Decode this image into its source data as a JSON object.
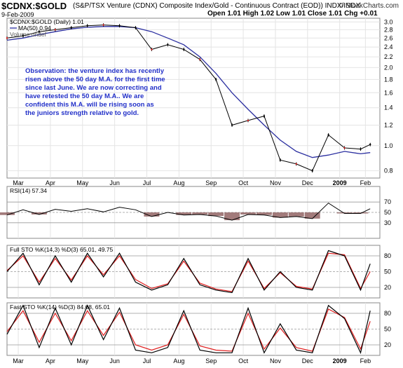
{
  "header": {
    "symbol": "$CDNX:$GOLD",
    "description": "(S&P/TSX Venture (CDNX) Composite Index/Gold - Continuous Contract (EOD))",
    "exchange": "INDX/INDX",
    "date": "9-Feb-2009",
    "quote": "Open 1.01  High 1.02  Low 1.01  Close 1.01  Chg +0.01 (+1.48%)",
    "brand": "© StockCharts.com"
  },
  "annotation": "Observation: the venture index has recently risen above the 50 day M.A. for the first time since last June. We are now correcting and have retested the 50 day M.A.. We are confident this M.A. will be rising soon as the juniors strength relative to gold.",
  "colors": {
    "price": "#000000",
    "ma": "#2b2fa0",
    "signal": "#e02020",
    "rsi_fill": "#8b5a5a",
    "grid": "#e4e4e4",
    "annotation": "#2230c8"
  },
  "chart_data": [
    {
      "type": "line",
      "title": "$CDNX:$GOLD (Daily) 1.01",
      "legend": [
        "$CDNX:$GOLD (Daily) 1.01",
        "MA(50) 0.94",
        "Volume undef"
      ],
      "yscale": "log",
      "ylim": [
        0.75,
        3.1
      ],
      "yticks": [
        0.8,
        1.0,
        1.2,
        1.4,
        1.6,
        1.8,
        2.0,
        2.2,
        2.4,
        2.6,
        2.8,
        3.0
      ],
      "x_labels": [
        "Mar",
        "Apr",
        "May",
        "Jun",
        "Jul",
        "Aug",
        "Sep",
        "Oct",
        "Nov",
        "Dec",
        "2009",
        "Feb"
      ],
      "x": [
        0,
        0.5,
        1,
        1.5,
        2,
        2.5,
        3,
        3.5,
        4,
        4.5,
        5,
        5.5,
        6,
        6.5,
        7,
        7.5,
        8,
        8.5,
        9,
        9.5,
        10,
        10.5,
        11,
        11.3
      ],
      "series": [
        {
          "name": "$CDNX:$GOLD",
          "values": [
            2.6,
            2.65,
            2.75,
            2.8,
            2.85,
            2.9,
            2.92,
            2.9,
            2.85,
            2.35,
            2.45,
            2.35,
            2.15,
            1.8,
            1.2,
            1.25,
            1.3,
            0.88,
            0.85,
            0.8,
            1.1,
            0.98,
            0.97,
            1.01
          ]
        },
        {
          "name": "MA(50)",
          "values": [
            2.55,
            2.6,
            2.68,
            2.75,
            2.82,
            2.86,
            2.88,
            2.88,
            2.85,
            2.75,
            2.6,
            2.45,
            2.2,
            1.9,
            1.6,
            1.38,
            1.2,
            1.05,
            0.95,
            0.9,
            0.92,
            0.95,
            0.93,
            0.94
          ]
        }
      ]
    },
    {
      "type": "area",
      "title": "RSI(14) 57.34",
      "ylim": [
        0,
        100
      ],
      "yticks": [
        30,
        50,
        70
      ],
      "levels": [
        30,
        50,
        70
      ],
      "x": [
        0,
        0.5,
        1,
        1.5,
        2,
        2.5,
        3,
        3.5,
        4,
        4.5,
        5,
        5.5,
        6,
        6.5,
        7,
        7.5,
        8,
        8.5,
        9,
        9.5,
        10,
        10.5,
        11,
        11.3
      ],
      "values": [
        45,
        55,
        46,
        56,
        52,
        57,
        51,
        60,
        55,
        42,
        50,
        45,
        46,
        43,
        35,
        46,
        45,
        40,
        42,
        38,
        68,
        48,
        48,
        57
      ]
    },
    {
      "type": "line",
      "title": "Full STO %K(14,3) %D(3) 65.01, 49.75",
      "ylim": [
        0,
        100
      ],
      "yticks": [
        20,
        50,
        80
      ],
      "levels": [
        20,
        50,
        80
      ],
      "x": [
        0,
        0.5,
        1,
        1.5,
        2,
        2.5,
        3,
        3.5,
        4,
        4.5,
        5,
        5.5,
        6,
        6.5,
        7,
        7.5,
        8,
        8.5,
        9,
        9.5,
        10,
        10.5,
        11,
        11.3
      ],
      "series": [
        {
          "name": "%K(14,3)",
          "values": [
            50,
            85,
            25,
            80,
            30,
            85,
            40,
            85,
            30,
            15,
            25,
            75,
            25,
            15,
            10,
            75,
            15,
            50,
            20,
            15,
            90,
            80,
            15,
            65
          ]
        },
        {
          "name": "%D(3)",
          "values": [
            52,
            80,
            30,
            75,
            34,
            80,
            44,
            80,
            35,
            18,
            27,
            70,
            28,
            17,
            12,
            70,
            18,
            48,
            22,
            17,
            85,
            82,
            18,
            50
          ]
        }
      ]
    },
    {
      "type": "line",
      "title": "Fast STO %K(14) %D(3) 84.68, 65.01",
      "ylim": [
        0,
        100
      ],
      "yticks": [
        20,
        50,
        80
      ],
      "levels": [
        20,
        50,
        80
      ],
      "x_labels": [
        "Mar",
        "Apr",
        "May",
        "Jun",
        "Jul",
        "Aug",
        "Sep",
        "Oct",
        "Nov",
        "Dec",
        "2009",
        "Feb"
      ],
      "x": [
        0,
        0.5,
        1,
        1.5,
        2,
        2.5,
        3,
        3.5,
        4,
        4.5,
        5,
        5.5,
        6,
        6.5,
        7,
        7.5,
        8,
        8.5,
        9,
        9.5,
        10,
        10.5,
        11,
        11.3
      ],
      "series": [
        {
          "name": "%K(14)",
          "values": [
            40,
            95,
            15,
            90,
            20,
            95,
            30,
            90,
            10,
            5,
            15,
            85,
            10,
            5,
            5,
            90,
            5,
            60,
            10,
            5,
            95,
            70,
            5,
            85
          ]
        },
        {
          "name": "%D(3)",
          "values": [
            45,
            85,
            25,
            80,
            28,
            85,
            38,
            82,
            20,
            10,
            20,
            78,
            18,
            10,
            8,
            80,
            12,
            52,
            15,
            8,
            88,
            72,
            12,
            65
          ]
        }
      ]
    }
  ]
}
